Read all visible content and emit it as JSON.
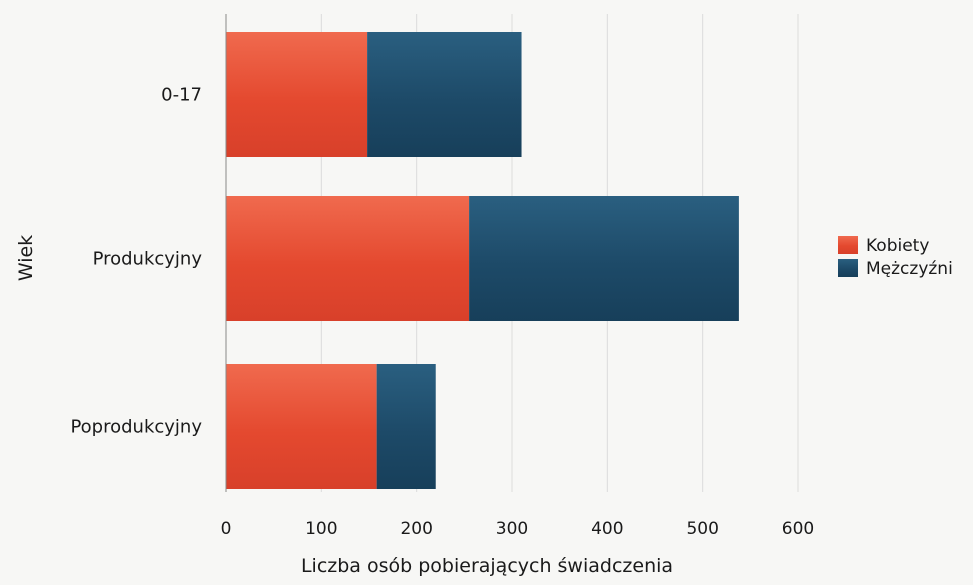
{
  "chart_data": {
    "type": "bar",
    "orientation": "horizontal",
    "stacked": true,
    "categories": [
      "0-17",
      "Produkcyjny",
      "Poprodukcyjny"
    ],
    "series": [
      {
        "name": "Kobiety",
        "values": [
          148,
          255,
          158
        ],
        "color": "#e8553a"
      },
      {
        "name": "Mężczyźni",
        "values": [
          162,
          283,
          62
        ],
        "color": "#1f4f6e"
      }
    ],
    "xlabel": "Liczba osób pobierających świadczenia",
    "ylabel": "Wiek",
    "xlim": [
      0,
      600
    ],
    "xticks": [
      "0",
      "100",
      "200",
      "300",
      "400",
      "500",
      "600"
    ],
    "grid": true,
    "legend_position": "right"
  }
}
